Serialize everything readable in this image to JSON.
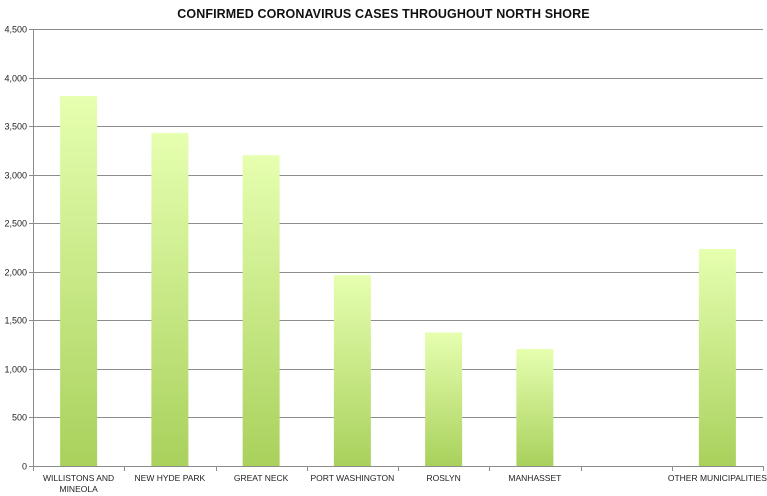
{
  "chart_data": {
    "type": "bar",
    "title": "CONFIRMED CORONAVIRUS CASES THROUGHOUT NORTH SHORE",
    "xlabel": "",
    "ylabel": "",
    "categories": [
      [
        "WILLISTONS AND",
        "MINEOLA"
      ],
      [
        "NEW HYDE PARK"
      ],
      [
        "GREAT NECK"
      ],
      [
        "PORT WASHINGTON"
      ],
      [
        "ROSLYN"
      ],
      [
        "MANHASSET"
      ],
      [
        ""
      ],
      [
        "OTHER MUNICIPALITIES"
      ]
    ],
    "values": [
      3810,
      3430,
      3200,
      1965,
      1375,
      1205,
      null,
      2235
    ],
    "ylim": [
      0,
      4500
    ],
    "yticks": [
      0,
      500,
      1000,
      1500,
      2000,
      2500,
      3000,
      3500,
      4000,
      4500
    ],
    "ytick_labels": [
      "0",
      "500",
      "1,000",
      "1,500",
      "2,000",
      "2,500",
      "3,000",
      "3,500",
      "4,000",
      "4,500"
    ],
    "grid": true,
    "legend": "none",
    "colors": {
      "bar_top": "#e6ffb0",
      "bar_bottom": "#a9d15c",
      "grid": "#8c8c8c",
      "axis": "#8c8c8c"
    }
  }
}
